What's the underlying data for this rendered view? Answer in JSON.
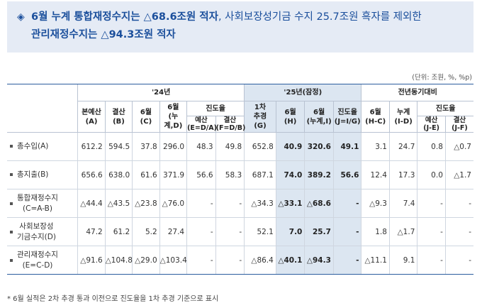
{
  "banner": {
    "line1": [
      {
        "text": "6월 누계 통합재정수지는 △68.6조원 적자",
        "bold": true
      },
      {
        "text": ", 사회보장성기금 수지 25.7조원 흑자를 제외한",
        "bold": false
      }
    ],
    "line2": [
      {
        "text": "관리재정수지는 △94.3조원 적자",
        "bold": true
      }
    ],
    "icon": "diamond-bullet-icon"
  },
  "unit": "(단위: 조원, %, %p)",
  "table": {
    "group_headers": [
      "'24년",
      "'25년(잠정)",
      "전년동기대비"
    ],
    "sub_headers": {
      "y24": [
        "본예산\n(A)",
        "결산\n(B)",
        "6월\n(C)",
        "6월\n(누계,D)"
      ],
      "y24_progress": "진도율",
      "y24_progress_cols": [
        "예산\n(E=D/A)",
        "결산\n(F=D/B)"
      ],
      "y25": [
        "1차\n추경\n(G)",
        "6월\n(H)",
        "6월\n(누계,I)",
        "진도율\n(J=I/G)"
      ],
      "yoy": [
        "6월\n(H-C)",
        "누계\n(I-D)"
      ],
      "yoy_progress": "진도율",
      "yoy_progress_cols": [
        "예산\n(J-E)",
        "결산\n(J-F)"
      ]
    },
    "rows": [
      {
        "label": [
          "총수입(A)"
        ],
        "values": [
          "612.2",
          "594.5",
          "37.8",
          "296.0",
          "48.3",
          "49.8",
          "652.8",
          "40.9",
          "320.6",
          "49.1",
          "3.1",
          "24.7",
          "0.8",
          "△0.7"
        ]
      },
      {
        "label": [
          "총지출(B)"
        ],
        "values": [
          "656.6",
          "638.0",
          "61.6",
          "371.9",
          "56.6",
          "58.3",
          "687.1",
          "74.0",
          "389.2",
          "56.6",
          "12.4",
          "17.3",
          "0.0",
          "△1.7"
        ]
      },
      {
        "label": [
          "통합재정수지",
          "(C=A-B)"
        ],
        "values": [
          "△44.4",
          "△43.5",
          "△23.8",
          "△76.0",
          "-",
          "-",
          "△34.3",
          "△33.1",
          "△68.6",
          "-",
          "△9.3",
          "7.4",
          "-",
          "-"
        ]
      },
      {
        "label": [
          "사회보장성",
          "기금수지(D)"
        ],
        "values": [
          "47.2",
          "61.2",
          "5.2",
          "27.4",
          "-",
          "-",
          "52.1",
          "7.0",
          "25.7",
          "-",
          "1.8",
          "△1.7",
          "-",
          "-"
        ]
      },
      {
        "label": [
          "관리재정수지",
          "(E=C-D)"
        ],
        "values": [
          "△91.6",
          "△104.8",
          "△29.0",
          "△103.4",
          "-",
          "-",
          "△86.4",
          "△40.1",
          "△94.3",
          "-",
          "△11.1",
          "9.1",
          "-",
          "-"
        ]
      }
    ],
    "bold_columns": [
      7,
      8,
      9
    ],
    "highlight_columns": [
      7,
      8,
      9
    ]
  },
  "footnote": "* 6월 실적은 2차 추경 통과 이전으로 진도율을 1차 추경 기준으로 표시",
  "colors": {
    "banner_bg": "#e5ebf5",
    "banner_text": "#1b4f9c",
    "highlight_bg": "#dce6f1",
    "rule": "#2b5d9e"
  }
}
